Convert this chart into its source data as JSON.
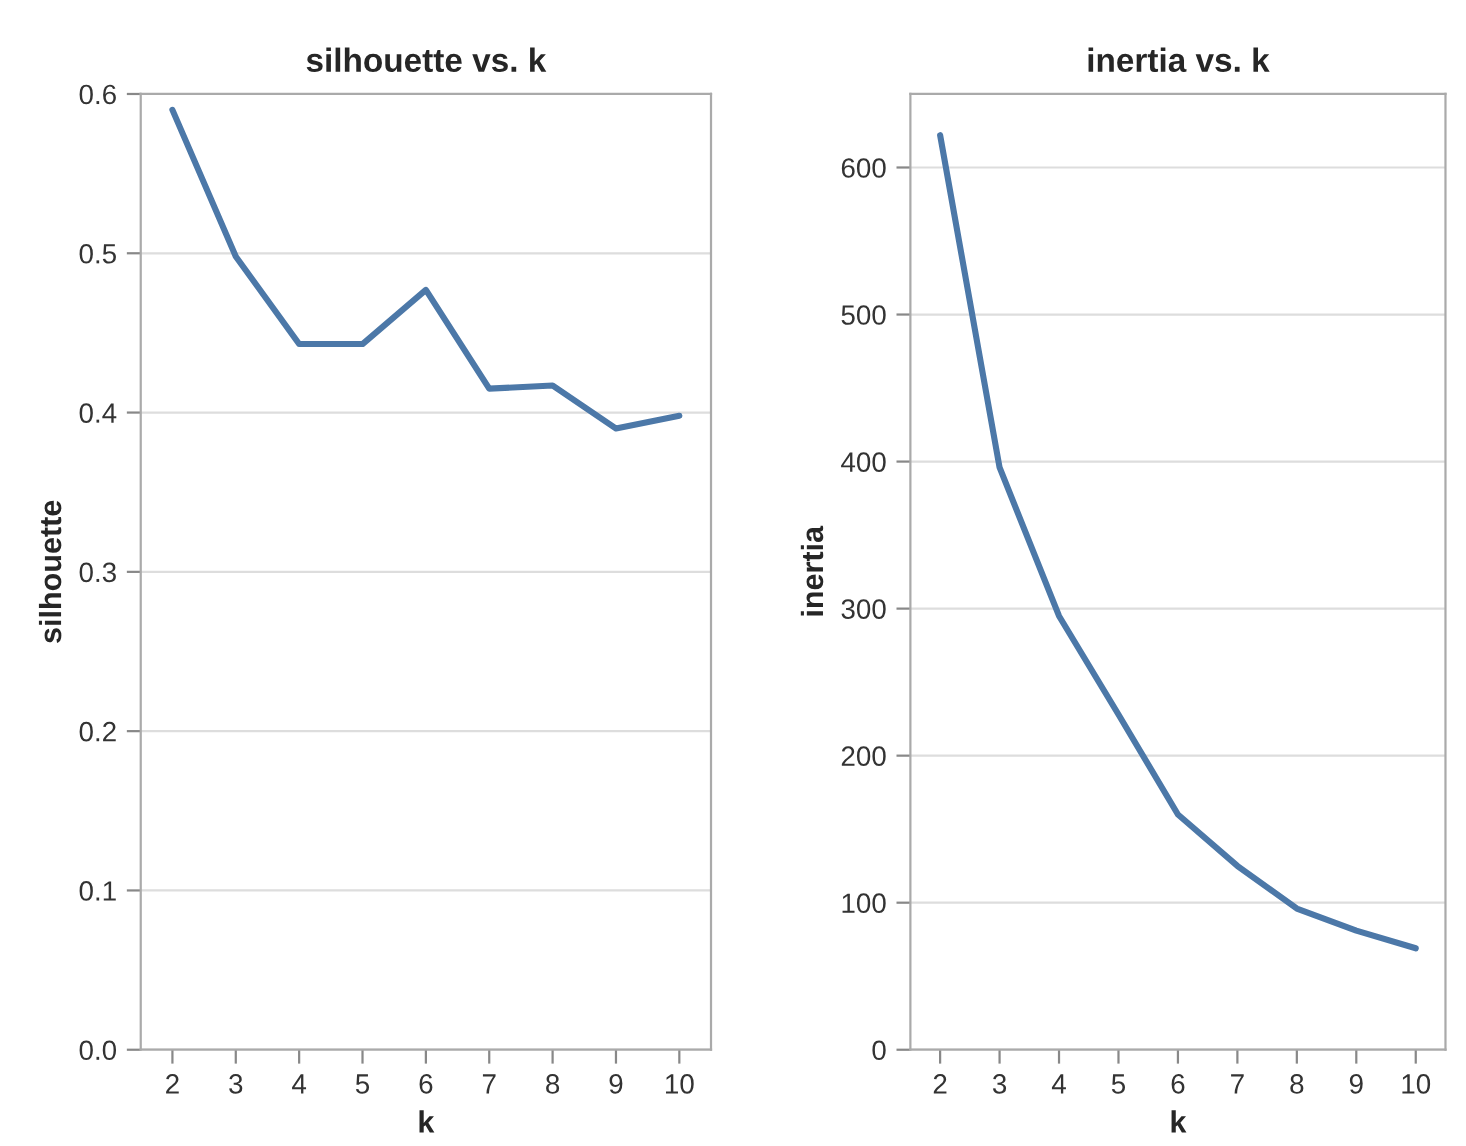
{
  "chart_data": [
    {
      "type": "line",
      "title": "silhouette vs. k",
      "xlabel": "k",
      "ylabel": "silhouette",
      "x": [
        2,
        3,
        4,
        5,
        6,
        7,
        8,
        9,
        10
      ],
      "series": [
        {
          "color": "#4c78a8",
          "values": [
            0.59,
            0.498,
            0.443,
            0.443,
            0.477,
            0.415,
            0.417,
            0.39,
            0.398
          ]
        }
      ],
      "xlim": [
        1.5,
        10.5
      ],
      "xticks": [
        2,
        3,
        4,
        5,
        6,
        7,
        8,
        9,
        10
      ],
      "ylim": [
        0,
        0.6
      ],
      "yticks": [
        {
          "value": 0,
          "label": "0.0"
        },
        0.1,
        0.2,
        0.3,
        0.4,
        0.5,
        0.6
      ],
      "grid": "y",
      "marker": "none",
      "line_style": "solid"
    },
    {
      "type": "line",
      "title": "inertia vs. k",
      "xlabel": "k",
      "ylabel": "inertia",
      "x": [
        2,
        3,
        4,
        5,
        6,
        7,
        8,
        9,
        10
      ],
      "series": [
        {
          "color": "#4c78a8",
          "values": [
            622,
            396,
            295,
            228,
            160,
            125,
            96,
            81,
            69
          ]
        }
      ],
      "xlim": [
        1.5,
        10.5
      ],
      "xticks": [
        2,
        3,
        4,
        5,
        6,
        7,
        8,
        9,
        10
      ],
      "ylim": [
        0,
        650
      ],
      "yticks": [
        0,
        100,
        200,
        300,
        400,
        500,
        600
      ],
      "grid": "y",
      "marker": "none",
      "line_style": "solid"
    }
  ]
}
